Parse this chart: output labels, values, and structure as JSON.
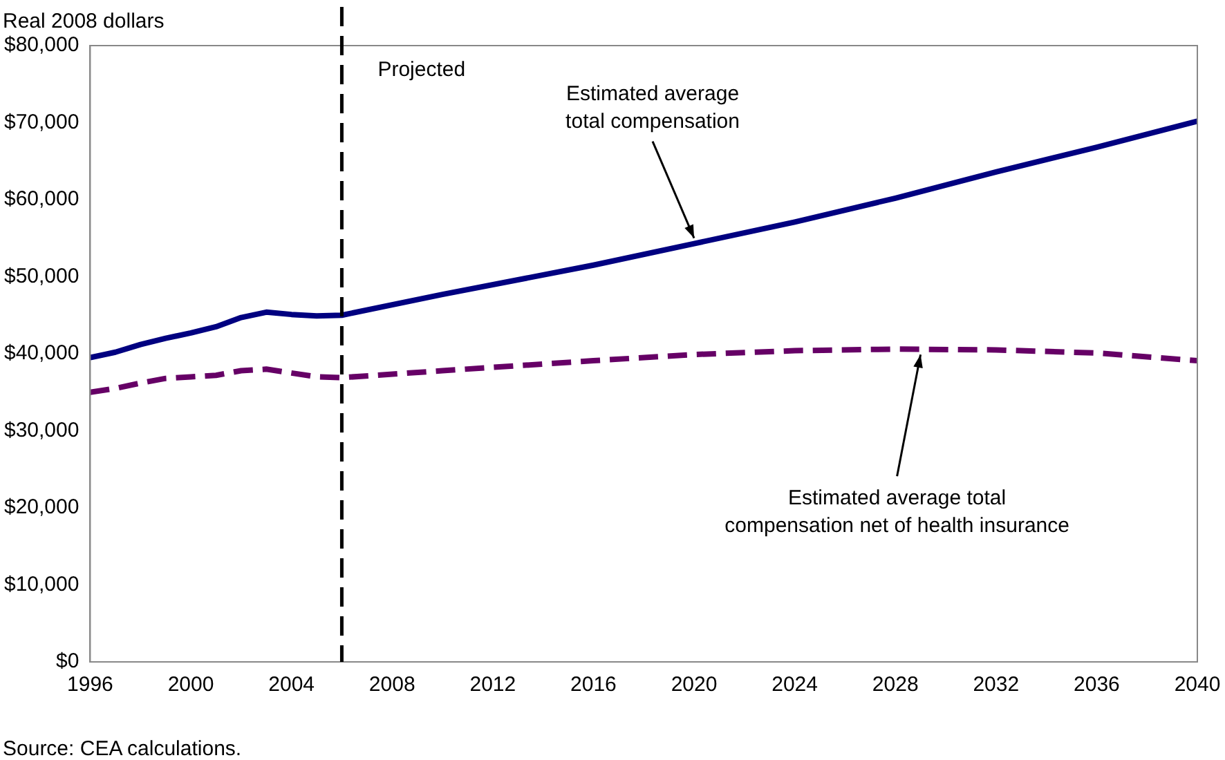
{
  "chart_data": {
    "type": "line",
    "ylabel": "Real 2008 dollars",
    "x": [
      1996,
      1997,
      1998,
      1999,
      2000,
      2001,
      2002,
      2003,
      2004,
      2005,
      2006,
      2010,
      2016,
      2020,
      2024,
      2028,
      2032,
      2036,
      2040
    ],
    "series": [
      {
        "color": "#000080",
        "line_style": "solid",
        "values": [
          39500,
          40200,
          41200,
          42000,
          42700,
          43500,
          44700,
          45400,
          45100,
          44900,
          45000,
          47700,
          51500,
          54300,
          57100,
          60200,
          63600,
          66800,
          70200
        ]
      },
      {
        "color": "#660066",
        "line_style": "dashed",
        "values": [
          35000,
          35500,
          36200,
          36800,
          37000,
          37200,
          37800,
          38000,
          37500,
          37000,
          36900,
          37800,
          39100,
          39900,
          40400,
          40600,
          40500,
          40100,
          39100
        ]
      }
    ],
    "xlim": [
      1996,
      2040
    ],
    "xticks": [
      1996,
      2000,
      2004,
      2008,
      2012,
      2016,
      2020,
      2024,
      2028,
      2032,
      2036,
      2040
    ],
    "ylim": [
      0,
      80000
    ],
    "yticks": [
      {
        "value": 0,
        "label": "$0"
      },
      {
        "value": 10000,
        "label": "$10,000"
      },
      {
        "value": 20000,
        "label": "$20,000"
      },
      {
        "value": 30000,
        "label": "$30,000"
      },
      {
        "value": 40000,
        "label": "$40,000"
      },
      {
        "value": 50000,
        "label": "$50,000"
      },
      {
        "value": 60000,
        "label": "$60,000"
      },
      {
        "value": 70000,
        "label": "$70,000"
      },
      {
        "value": 80000,
        "label": "$80,000"
      }
    ],
    "grid": false,
    "legend": false,
    "marker": "none",
    "ref_lines": [
      {
        "axis": "x",
        "value": 2006,
        "label": "Projected",
        "color": "#000000",
        "line_style": "dashed"
      }
    ],
    "annotations": [
      {
        "text": "Estimated average total compensation",
        "x": 2020,
        "y": 54300
      },
      {
        "text": "Estimated average total compensation net of health insurance",
        "x": 2029,
        "y": 40600
      },
      "Source: CEA calculations."
    ]
  }
}
